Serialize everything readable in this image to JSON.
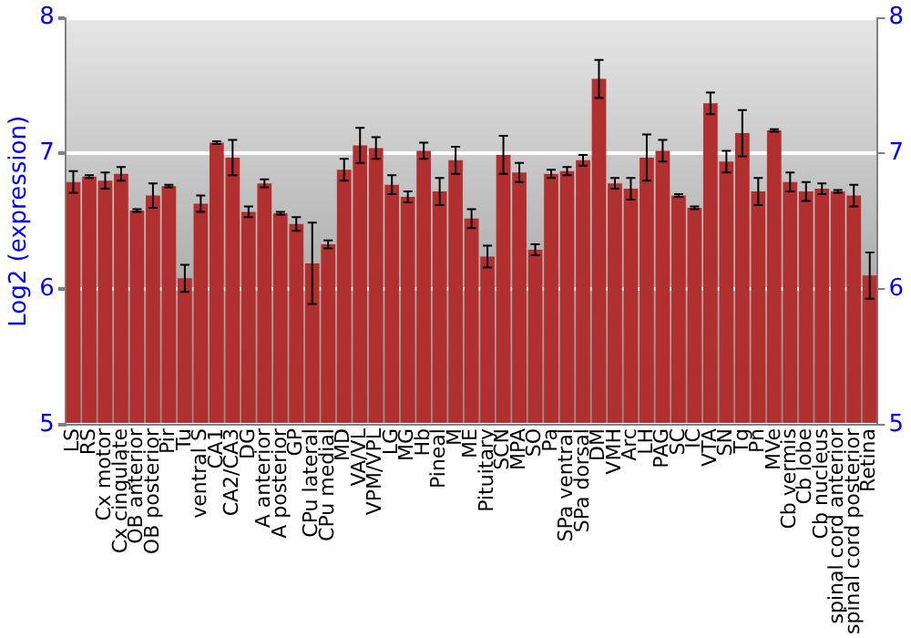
{
  "chart_data": {
    "type": "bar",
    "ylabel": "Log2 (expression)",
    "categories": [
      "LS",
      "RS",
      "Cx motor",
      "Cx cingulate",
      "OB anterior",
      "OB posterior",
      "Pir",
      "Tu",
      "ventral S",
      "CA1",
      "CA2/CA3",
      "DG",
      "A anterior",
      "A posterior",
      "GP",
      "CPu lateral",
      "CPu medial",
      "MD",
      "VA/VL",
      "VPM/VPL",
      "LG",
      "MG",
      "Hb",
      "Pineal",
      "M",
      "ME",
      "Pituitary",
      "SCN",
      "MPA",
      "SO",
      "Pa",
      "SPa ventral",
      "SPa dorsal",
      "DM",
      "VMH",
      "Arc",
      "LH",
      "PAG",
      "SC",
      "IC",
      "VTA",
      "SN",
      "Tg",
      "Pn",
      "MVe",
      "Cb vermis",
      "Cb lobe",
      "Cb nucleus",
      "spinal cord anterior",
      "spinal cord posterior",
      "Retina"
    ],
    "values": [
      6.79,
      6.83,
      6.8,
      6.85,
      6.58,
      6.69,
      6.76,
      6.08,
      6.63,
      7.08,
      6.97,
      6.57,
      6.78,
      6.56,
      6.48,
      6.19,
      6.33,
      6.88,
      7.06,
      7.04,
      6.77,
      6.68,
      7.02,
      6.72,
      6.95,
      6.52,
      6.24,
      6.99,
      6.86,
      6.29,
      6.85,
      6.87,
      6.95,
      7.55,
      6.78,
      6.74,
      6.97,
      7.02,
      6.69,
      6.6,
      7.37,
      6.94,
      7.15,
      6.72,
      7.17,
      6.79,
      6.72,
      6.74,
      6.72,
      6.69,
      6.1
    ],
    "errors": [
      0.08,
      0.01,
      0.06,
      0.05,
      0.01,
      0.09,
      0.01,
      0.1,
      0.06,
      0.01,
      0.13,
      0.04,
      0.03,
      0.01,
      0.05,
      0.3,
      0.03,
      0.08,
      0.13,
      0.08,
      0.07,
      0.04,
      0.06,
      0.1,
      0.1,
      0.07,
      0.08,
      0.14,
      0.07,
      0.04,
      0.03,
      0.03,
      0.04,
      0.14,
      0.04,
      0.08,
      0.17,
      0.08,
      0.01,
      0.01,
      0.08,
      0.08,
      0.17,
      0.1,
      0.01,
      0.07,
      0.07,
      0.04,
      0.01,
      0.08,
      0.17
    ],
    "color": "#b22f2f",
    "ylim": [
      5,
      8
    ],
    "yticks": [
      5,
      6,
      7,
      8
    ],
    "y2lim": [
      5,
      8
    ],
    "y2ticks": [
      5,
      6,
      7,
      8
    ],
    "grid": "y",
    "legend": false
  }
}
